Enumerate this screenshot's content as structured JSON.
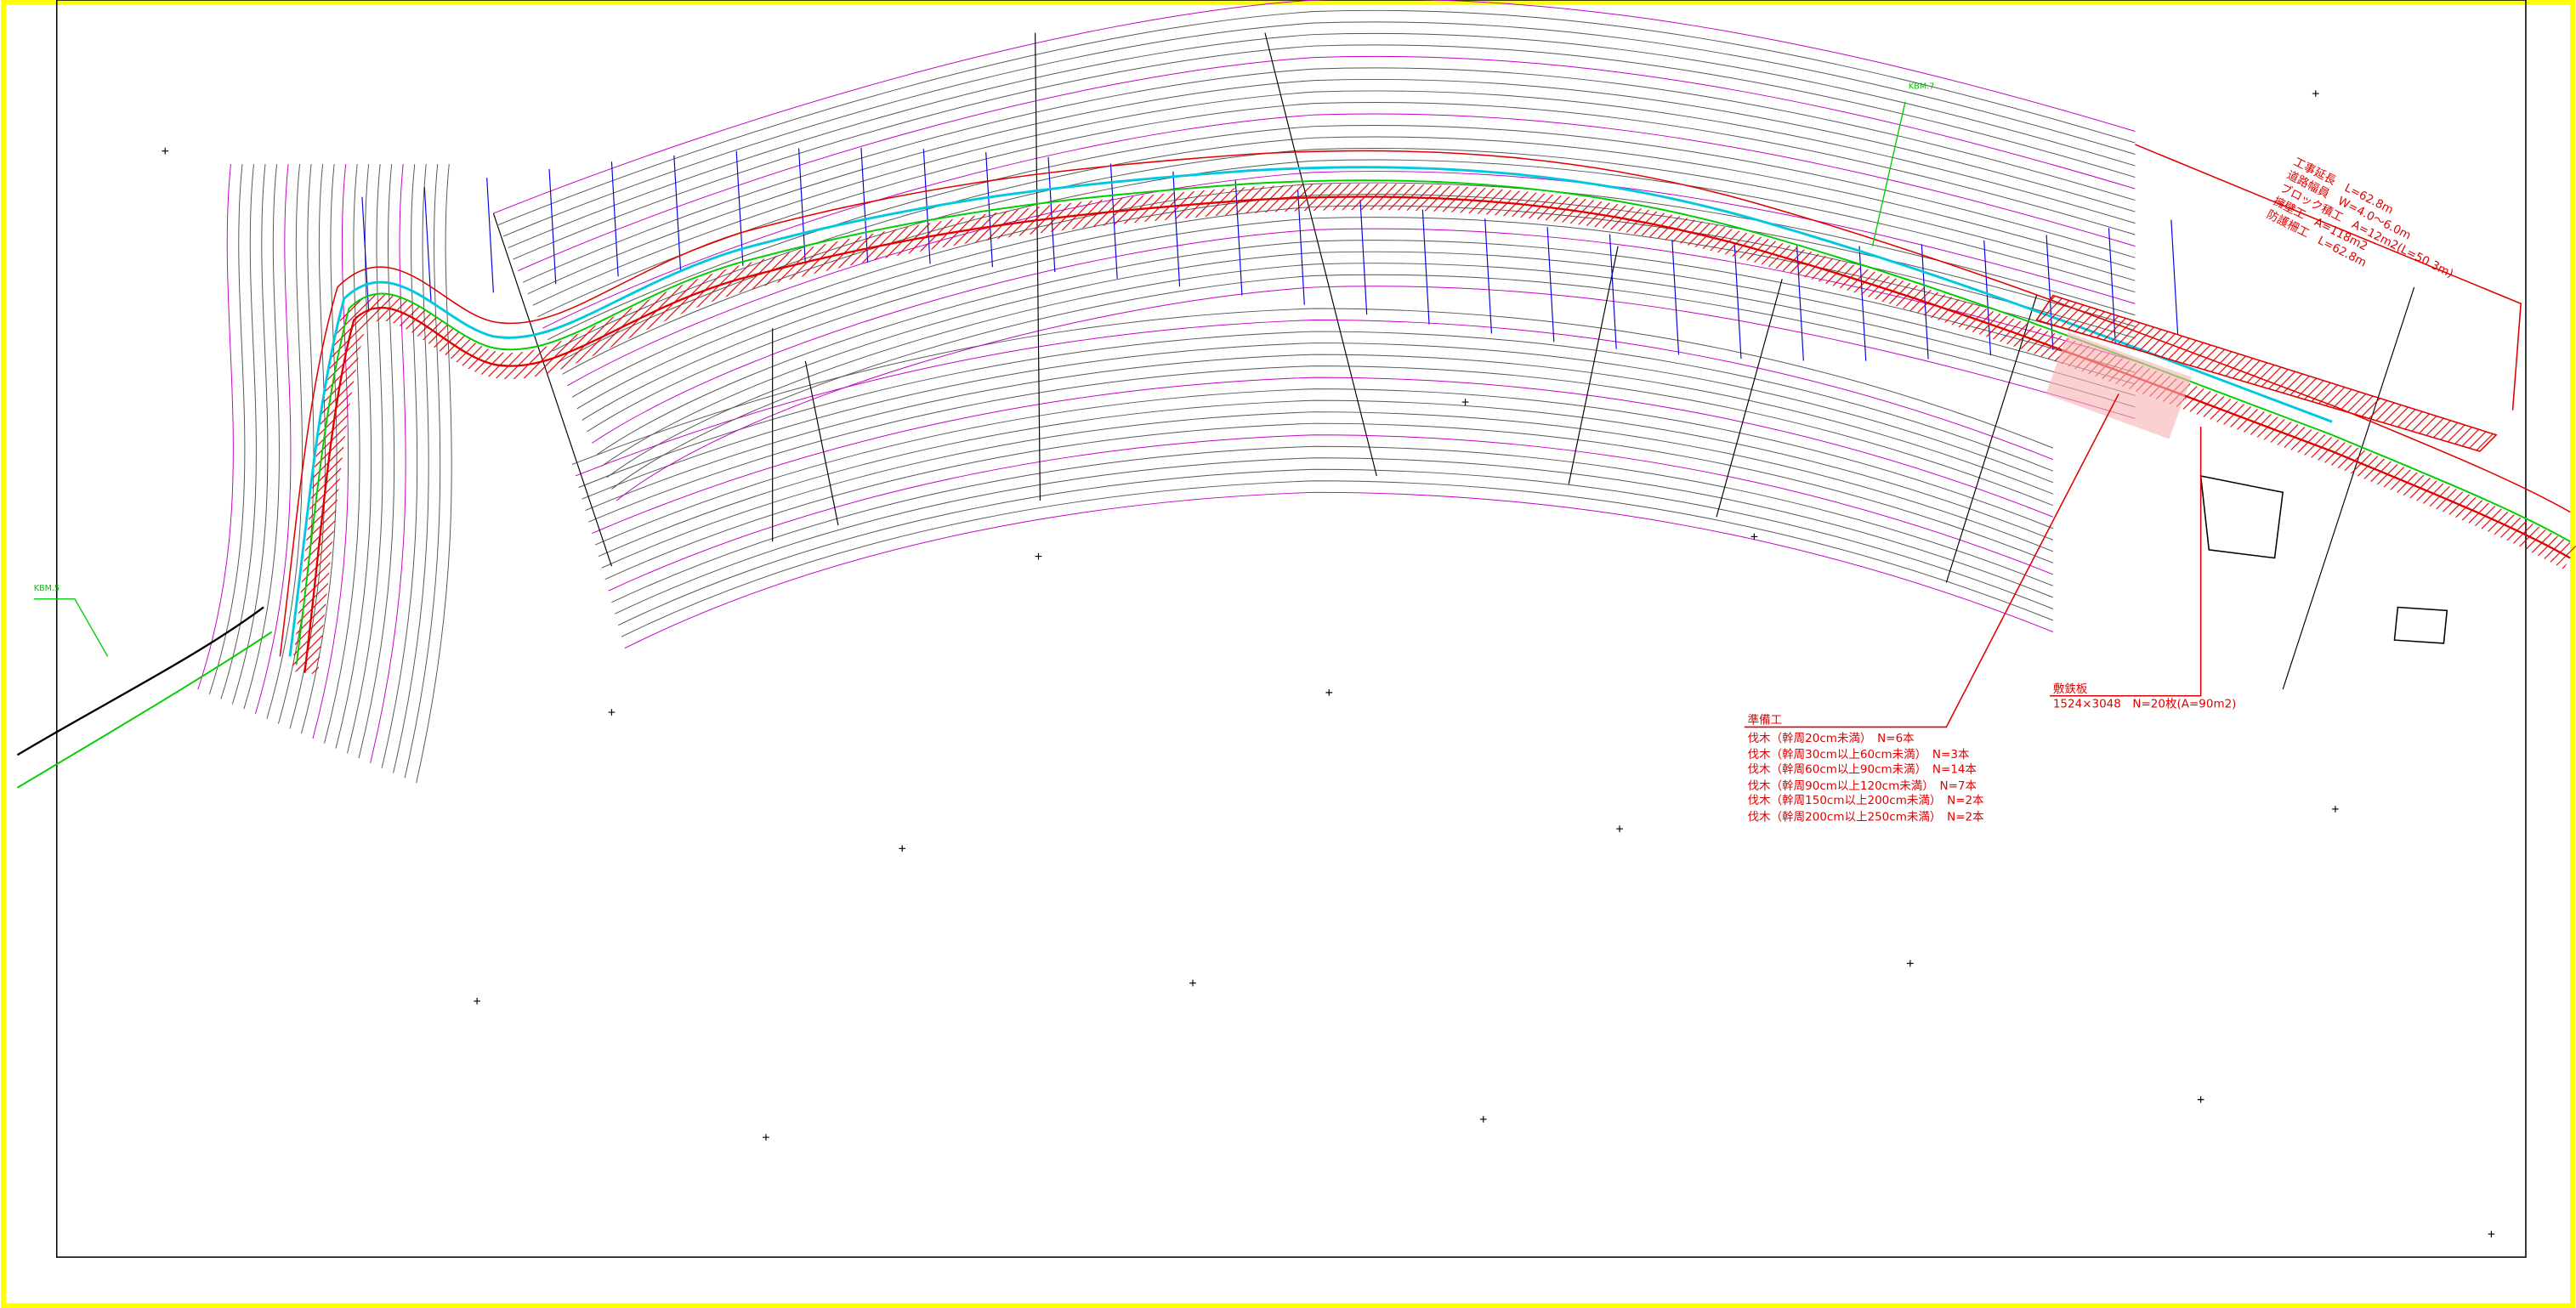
{
  "summary": {
    "lines": [
      "工事延長　L=62.8m",
      "道路幅員　W=4.0～6.0m",
      "ブロック積工　A=12m2(L=50.3m)",
      "擁壁工　A=118m2",
      "防護柵工　L=62.8m"
    ]
  },
  "preparation": {
    "title": "準備工",
    "items": [
      "伐木（幹周20cm未満）　N=6本",
      "伐木（幹周30cm以上60cm未満）　N=3本",
      "伐木（幹周60cm以上90cm未満）　N=14本",
      "伐木（幹周90cm以上120cm未満）　N=7本",
      "伐木（幹周150cm以上200cm未満）　N=2本",
      "伐木（幹周200cm以上250cm未満）　N=2本"
    ]
  },
  "steel_plate": {
    "title": "敷鉄板",
    "spec": "1524×3048　N=20枚(A=90m2)"
  },
  "benchmarks": [
    "KBM.7",
    "KBM.5"
  ]
}
